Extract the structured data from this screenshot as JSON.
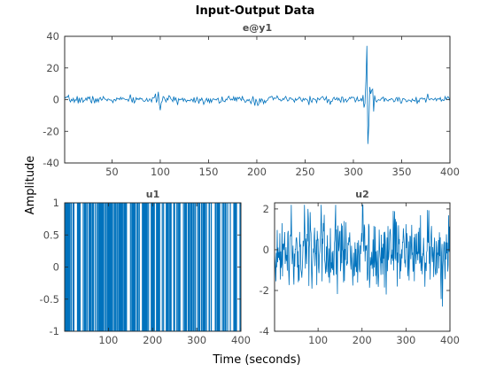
{
  "chart_data": [
    {
      "type": "line",
      "title": "e@y1",
      "series": [
        {
          "color": "#0072bd",
          "description": "noise around 0, amplitude ~±3 with small spikes near x=100 and x=200; large transient near x=314 reaching about +34 and -28",
          "x_range": [
            1,
            400
          ],
          "approx_envelope": 3,
          "spike_x": 314,
          "spike_max": 34,
          "spike_min": -28
        }
      ],
      "xlim": [
        1,
        400
      ],
      "ylim": [
        -40,
        40
      ],
      "x_ticks": [
        50,
        100,
        150,
        200,
        250,
        300,
        350,
        400
      ],
      "y_ticks": [
        -40,
        -20,
        0,
        20,
        40
      ]
    },
    {
      "type": "line",
      "title": "u1",
      "series": [
        {
          "color": "#0072bd",
          "description": "binary signal switching between -1 and 1",
          "values_set": [
            -1,
            1
          ],
          "x_range": [
            1,
            400
          ]
        }
      ],
      "xlim": [
        1,
        400
      ],
      "ylim": [
        -1,
        1
      ],
      "x_ticks": [
        100,
        200,
        300,
        400
      ],
      "y_ticks": [
        -1,
        -0.5,
        0,
        0.5,
        1
      ]
    },
    {
      "type": "line",
      "title": "u2",
      "series": [
        {
          "color": "#0072bd",
          "description": "random Gaussian-like signal around 0, mostly between about -3 and 2.2",
          "x_range": [
            1,
            400
          ],
          "approx_min": -3,
          "approx_max": 2.2
        }
      ],
      "xlim": [
        1,
        400
      ],
      "ylim": [
        -4,
        2.3
      ],
      "x_ticks": [
        100,
        200,
        300,
        400
      ],
      "y_ticks": [
        -4,
        -2,
        0,
        2
      ]
    }
  ],
  "figure": {
    "title": "Input-Output Data",
    "ylabel": "Amplitude",
    "xlabel": "Time (seconds)"
  }
}
